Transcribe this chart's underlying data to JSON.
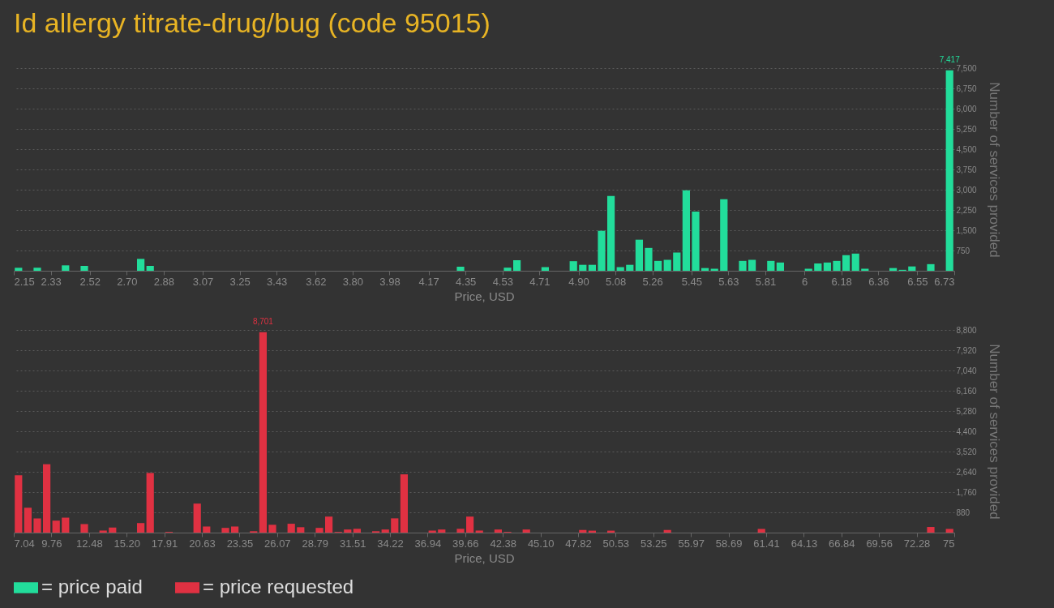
{
  "chart_data": [
    {
      "type": "histogram",
      "title": "Id allergy titrate-drug/bug (code 95015)",
      "xlabel": "Price, USD",
      "ylabel": "Number of services provided",
      "bins": [
        2.15,
        2.1958,
        2.2416,
        2.2874,
        2.3332,
        2.379,
        2.4248,
        2.4706,
        2.5164,
        2.5622,
        2.608,
        2.6538,
        2.6996,
        2.7454,
        2.7912,
        2.837,
        2.8828,
        2.9286,
        2.9744,
        3.0202,
        3.066,
        3.1118,
        3.1576,
        3.2034,
        3.2492,
        3.295,
        3.3408,
        3.3866,
        3.4324,
        3.4782,
        3.524,
        3.5698,
        3.6156,
        3.6614,
        3.7072,
        3.753,
        3.7988,
        3.8446,
        3.8904,
        3.9362,
        3.982,
        4.0278,
        4.0736,
        4.1194,
        4.1652,
        4.211,
        4.2568,
        4.3026,
        4.3484,
        4.3942,
        4.44,
        4.4858,
        4.5316,
        4.5774,
        4.6232,
        4.669,
        4.7148,
        4.7606,
        4.8064,
        4.8522,
        4.898,
        4.9438,
        4.9896,
        5.0354,
        5.0812,
        5.127,
        5.1728,
        5.2186,
        5.2644,
        5.3102,
        5.356,
        5.4018,
        5.4476,
        5.4934,
        5.5392,
        5.585,
        5.6308,
        5.6766,
        5.7224,
        5.7682,
        5.814,
        5.8598,
        5.9056,
        5.9514,
        5.9972,
        6.043,
        6.0888,
        6.1346,
        6.1804,
        6.2262,
        6.272,
        6.3178,
        6.3636,
        6.4094,
        6.4552,
        6.501,
        6.5468,
        6.5926,
        6.6384,
        6.6842,
        6.73
      ],
      "series": [
        {
          "name": "= price paid",
          "color": "#22dd9b",
          "values": [
            110,
            0,
            110,
            0,
            0,
            200,
            0,
            180,
            0,
            0,
            0,
            0,
            0,
            440,
            180,
            0,
            0,
            0,
            0,
            0,
            0,
            0,
            0,
            0,
            0,
            0,
            0,
            0,
            0,
            0,
            0,
            0,
            0,
            0,
            0,
            0,
            0,
            0,
            0,
            0,
            0,
            0,
            0,
            0,
            0,
            0,
            0,
            150,
            0,
            0,
            0,
            0,
            115,
            390,
            0,
            0,
            135,
            0,
            0,
            355,
            220,
            220,
            1480,
            2770,
            135,
            220,
            1150,
            845,
            365,
            405,
            675,
            2980,
            2190,
            100,
            75,
            2650,
            0,
            365,
            405,
            0,
            365,
            305,
            0,
            0,
            75,
            270,
            305,
            365,
            575,
            635,
            75,
            0,
            0,
            100,
            35,
            160,
            0,
            245,
            0,
            7417
          ]
        }
      ],
      "annotations": [
        {
          "text": "7,417",
          "x": 6.7071,
          "y": 7417
        }
      ],
      "xlim": [
        2.15,
        6.73
      ],
      "xticks": [
        2.15,
        2.33,
        2.52,
        {
          "value": 2.7,
          "label": "2.70"
        },
        2.88,
        3.07,
        3.25,
        3.43,
        3.62,
        {
          "value": 3.8,
          "label": "3.80"
        },
        3.98,
        4.17,
        4.35,
        4.53,
        4.71,
        {
          "value": 4.9,
          "label": "4.90"
        },
        5.08,
        5.26,
        5.45,
        5.63,
        5.81,
        6,
        6.18,
        6.36,
        6.55,
        6.73
      ],
      "ylim": [
        0,
        7500
      ],
      "yticks": [
        {
          "value": 750,
          "label": "750"
        },
        {
          "value": 1500,
          "label": "1,500"
        },
        {
          "value": 2250,
          "label": "2,250"
        },
        {
          "value": 3000,
          "label": "3,000"
        },
        {
          "value": 3750,
          "label": "3,750"
        },
        {
          "value": 4500,
          "label": "4,500"
        },
        {
          "value": 5250,
          "label": "5,250"
        },
        {
          "value": 6000,
          "label": "6,000"
        },
        {
          "value": 6750,
          "label": "6,750"
        },
        {
          "value": 7500,
          "label": "7,500"
        }
      ],
      "grid": "y",
      "legend": "bottom left"
    },
    {
      "type": "histogram",
      "xlabel": "Price, USD",
      "ylabel": "Number of services provided",
      "bins": [
        7.04,
        7.7196,
        8.3992,
        9.0788,
        9.7584,
        10.438,
        11.1176,
        11.7972,
        12.4768,
        13.1564,
        13.836,
        14.5156,
        15.1952,
        15.8748,
        16.5544,
        17.234,
        17.9136,
        18.5932,
        19.2728,
        19.9524,
        20.632,
        21.3116,
        21.9912,
        22.6708,
        23.3504,
        24.03,
        24.7096,
        25.3892,
        26.0688,
        26.7484,
        27.428,
        28.1076,
        28.7872,
        29.4668,
        30.1464,
        30.826,
        31.5056,
        32.1852,
        32.8648,
        33.5444,
        34.224,
        34.9036,
        35.5832,
        36.2628,
        36.9424,
        37.622,
        38.3016,
        38.9812,
        39.6608,
        40.3404,
        41.02,
        41.6996,
        42.3792,
        43.0588,
        43.7384,
        44.418,
        45.0976,
        45.7772,
        46.4568,
        47.1364,
        47.816,
        48.4956,
        49.1752,
        49.8548,
        50.5344,
        51.214,
        51.8936,
        52.5732,
        53.2528,
        53.9324,
        54.612,
        55.2916,
        55.9712,
        56.6508,
        57.3304,
        58.01,
        58.6896,
        59.3692,
        60.0488,
        60.7284,
        61.408,
        62.0876,
        62.7672,
        63.4468,
        64.1264,
        64.806,
        65.4856,
        66.1652,
        66.8448,
        67.5244,
        68.204,
        68.8836,
        69.5632,
        70.2428,
        70.9224,
        71.602,
        72.2816,
        72.9612,
        73.6408,
        74.3204,
        75
      ],
      "series": [
        {
          "name": "= price requested",
          "color": "#e03142",
          "values": [
            2490,
            1080,
            620,
            2970,
            520,
            650,
            0,
            370,
            0,
            90,
            220,
            0,
            0,
            415,
            2590,
            0,
            30,
            0,
            0,
            1260,
            265,
            0,
            205,
            265,
            0,
            60,
            8701,
            340,
            0,
            385,
            235,
            0,
            205,
            695,
            30,
            135,
            165,
            0,
            60,
            135,
            620,
            2530,
            0,
            0,
            90,
            135,
            0,
            165,
            695,
            90,
            0,
            135,
            30,
            0,
            135,
            0,
            0,
            0,
            0,
            0,
            115,
            85,
            0,
            85,
            0,
            0,
            0,
            0,
            0,
            115,
            0,
            0,
            0,
            0,
            0,
            0,
            0,
            0,
            0,
            160,
            0,
            0,
            0,
            0,
            0,
            0,
            0,
            0,
            0,
            0,
            0,
            0,
            0,
            0,
            0,
            0,
            0,
            245,
            0,
            160
          ]
        }
      ],
      "annotations": [
        {
          "text": "8,701",
          "x": 25.0494,
          "y": 8701
        }
      ],
      "xlim": [
        7.04,
        75
      ],
      "xticks": [
        7.04,
        9.76,
        12.48,
        {
          "value": 15.2,
          "label": "15.20"
        },
        17.91,
        20.63,
        23.35,
        26.07,
        28.79,
        31.51,
        34.22,
        36.94,
        39.66,
        42.38,
        {
          "value": 45.1,
          "label": "45.10"
        },
        47.82,
        50.53,
        53.25,
        55.97,
        58.69,
        61.41,
        64.13,
        66.84,
        69.56,
        72.28,
        75
      ],
      "ylim": [
        0,
        8800
      ],
      "yticks": [
        {
          "value": 880,
          "label": "880"
        },
        {
          "value": 1760,
          "label": "1,760"
        },
        {
          "value": 2640,
          "label": "2,640"
        },
        {
          "value": 3520,
          "label": "3,520"
        },
        {
          "value": 4400,
          "label": "4,400"
        },
        {
          "value": 5280,
          "label": "5,280"
        },
        {
          "value": 6160,
          "label": "6,160"
        },
        {
          "value": 7040,
          "label": "7,040"
        },
        {
          "value": 7920,
          "label": "7,920"
        },
        {
          "value": 8800,
          "label": "8,800"
        }
      ],
      "grid": "y",
      "legend": "bottom left"
    }
  ]
}
